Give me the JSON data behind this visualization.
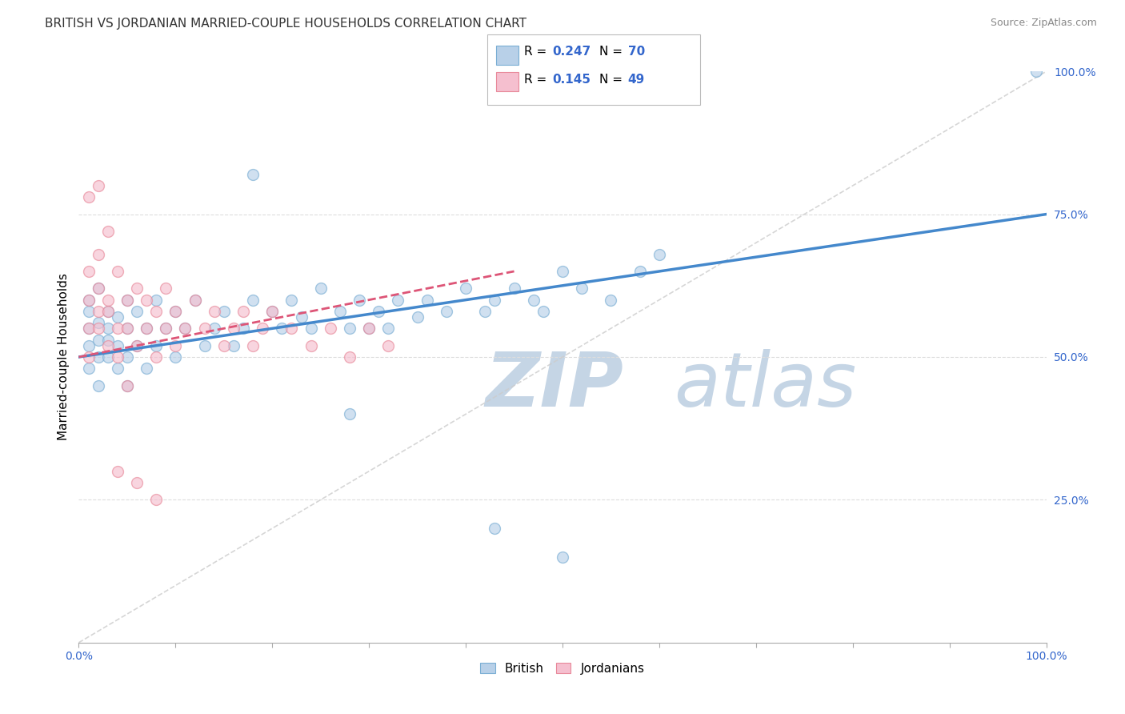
{
  "title": "BRITISH VS JORDANIAN MARRIED-COUPLE HOUSEHOLDS CORRELATION CHART",
  "source": "Source: ZipAtlas.com",
  "ylabel": "Married-couple Households",
  "xlim": [
    0,
    1
  ],
  "ylim": [
    0,
    1
  ],
  "grid_lines": [
    0.25,
    0.5,
    0.75
  ],
  "xtick_positions": [
    0,
    0.1,
    0.2,
    0.3,
    0.4,
    0.5,
    0.6,
    0.7,
    0.8,
    0.9,
    1.0
  ],
  "british_R": 0.247,
  "british_N": 70,
  "jordanian_R": 0.145,
  "jordanian_N": 49,
  "british_color": "#b8d0e8",
  "british_edge_color": "#7aaed4",
  "jordanian_color": "#f5bfcf",
  "jordanian_edge_color": "#e8899a",
  "british_line_color": "#4488cc",
  "jordanian_line_color": "#dd5577",
  "jordanian_line_style": "--",
  "diagonal_color": "#cccccc",
  "diagonal_style": "--",
  "watermark_zip_color": "#c8d8e8",
  "watermark_atlas_color": "#b0cce0",
  "legend_box_color": "#3366cc",
  "title_fontsize": 11,
  "source_fontsize": 9,
  "tick_fontsize": 10,
  "ylabel_fontsize": 11,
  "marker_size": 100,
  "alpha": 0.65,
  "british_x": [
    0.01,
    0.01,
    0.01,
    0.01,
    0.01,
    0.02,
    0.02,
    0.02,
    0.02,
    0.02,
    0.03,
    0.03,
    0.03,
    0.03,
    0.04,
    0.04,
    0.04,
    0.05,
    0.05,
    0.05,
    0.05,
    0.06,
    0.06,
    0.07,
    0.07,
    0.08,
    0.08,
    0.09,
    0.1,
    0.1,
    0.11,
    0.12,
    0.13,
    0.14,
    0.15,
    0.16,
    0.17,
    0.18,
    0.2,
    0.21,
    0.22,
    0.23,
    0.24,
    0.25,
    0.27,
    0.28,
    0.29,
    0.3,
    0.31,
    0.32,
    0.33,
    0.35,
    0.36,
    0.38,
    0.4,
    0.42,
    0.43,
    0.45,
    0.47,
    0.48,
    0.5,
    0.52,
    0.55,
    0.58,
    0.6,
    0.18,
    0.28,
    0.43,
    0.99,
    0.5
  ],
  "british_y": [
    0.55,
    0.52,
    0.58,
    0.48,
    0.6,
    0.53,
    0.56,
    0.5,
    0.62,
    0.45,
    0.55,
    0.58,
    0.5,
    0.53,
    0.57,
    0.52,
    0.48,
    0.55,
    0.6,
    0.5,
    0.45,
    0.58,
    0.52,
    0.55,
    0.48,
    0.6,
    0.52,
    0.55,
    0.58,
    0.5,
    0.55,
    0.6,
    0.52,
    0.55,
    0.58,
    0.52,
    0.55,
    0.6,
    0.58,
    0.55,
    0.6,
    0.57,
    0.55,
    0.62,
    0.58,
    0.55,
    0.6,
    0.55,
    0.58,
    0.55,
    0.6,
    0.57,
    0.6,
    0.58,
    0.62,
    0.58,
    0.6,
    0.62,
    0.6,
    0.58,
    0.65,
    0.62,
    0.6,
    0.65,
    0.68,
    0.82,
    0.4,
    0.2,
    1.0,
    0.15
  ],
  "jordanian_x": [
    0.01,
    0.01,
    0.01,
    0.01,
    0.02,
    0.02,
    0.02,
    0.02,
    0.03,
    0.03,
    0.03,
    0.04,
    0.04,
    0.04,
    0.05,
    0.05,
    0.05,
    0.06,
    0.06,
    0.07,
    0.07,
    0.08,
    0.08,
    0.09,
    0.09,
    0.1,
    0.1,
    0.11,
    0.12,
    0.13,
    0.14,
    0.15,
    0.16,
    0.17,
    0.18,
    0.19,
    0.2,
    0.22,
    0.24,
    0.26,
    0.28,
    0.3,
    0.32,
    0.01,
    0.02,
    0.03,
    0.04,
    0.06,
    0.08
  ],
  "jordanian_y": [
    0.6,
    0.55,
    0.65,
    0.5,
    0.58,
    0.62,
    0.55,
    0.68,
    0.58,
    0.52,
    0.6,
    0.65,
    0.55,
    0.5,
    0.6,
    0.55,
    0.45,
    0.62,
    0.52,
    0.6,
    0.55,
    0.58,
    0.5,
    0.55,
    0.62,
    0.58,
    0.52,
    0.55,
    0.6,
    0.55,
    0.58,
    0.52,
    0.55,
    0.58,
    0.52,
    0.55,
    0.58,
    0.55,
    0.52,
    0.55,
    0.5,
    0.55,
    0.52,
    0.78,
    0.8,
    0.72,
    0.3,
    0.28,
    0.25
  ]
}
